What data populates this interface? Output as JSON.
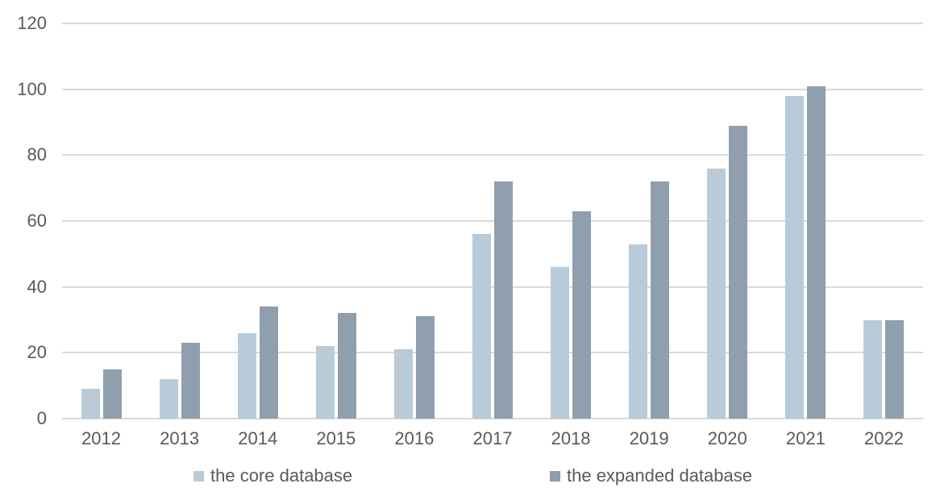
{
  "chart_data": {
    "type": "bar",
    "title": "",
    "categories": [
      "2012",
      "2013",
      "2014",
      "2015",
      "2016",
      "2017",
      "2018",
      "2019",
      "2020",
      "2021",
      "2022"
    ],
    "series": [
      {
        "name": "the core database",
        "color": "#b9cbd8",
        "values": [
          9,
          12,
          26,
          22,
          21,
          56,
          46,
          53,
          76,
          98,
          30
        ]
      },
      {
        "name": "the expanded database",
        "color": "#8f9fad",
        "values": [
          15,
          23,
          34,
          32,
          31,
          72,
          63,
          72,
          89,
          101,
          30
        ]
      }
    ],
    "xlabel": "",
    "ylabel": "",
    "ylim": [
      0,
      120
    ],
    "yticks": [
      0,
      20,
      40,
      60,
      80,
      100,
      120
    ],
    "grid": "horizontal-only",
    "legend_position": "bottom",
    "colors": {
      "gridline": "#dadada",
      "axis_text": "#595959",
      "background": "#ffffff"
    }
  }
}
